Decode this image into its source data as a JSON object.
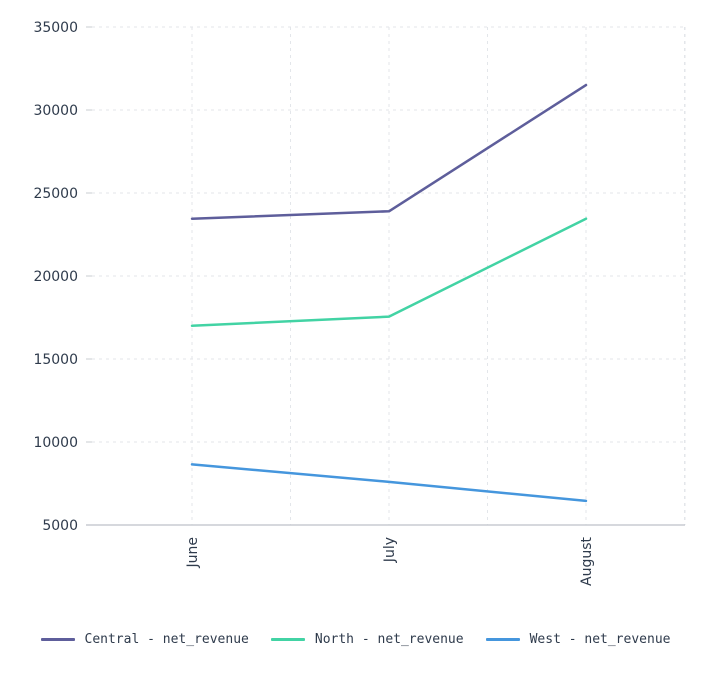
{
  "chart_data": {
    "type": "line",
    "categories": [
      "June",
      "July",
      "August"
    ],
    "series": [
      {
        "name": "Central - net_revenue",
        "color": "#5e5e9b",
        "values": [
          23450,
          23900,
          31500
        ]
      },
      {
        "name": "North - net_revenue",
        "color": "#42d3a4",
        "values": [
          17000,
          17550,
          23450
        ]
      },
      {
        "name": "West - net_revenue",
        "color": "#4596dd",
        "values": [
          8650,
          7600,
          6450
        ]
      }
    ],
    "yticks": [
      "5000",
      "10000",
      "15000",
      "20000",
      "25000",
      "30000",
      "35000"
    ],
    "ylim": [
      5000,
      35000
    ],
    "grid": true,
    "legend_position": "bottom"
  }
}
